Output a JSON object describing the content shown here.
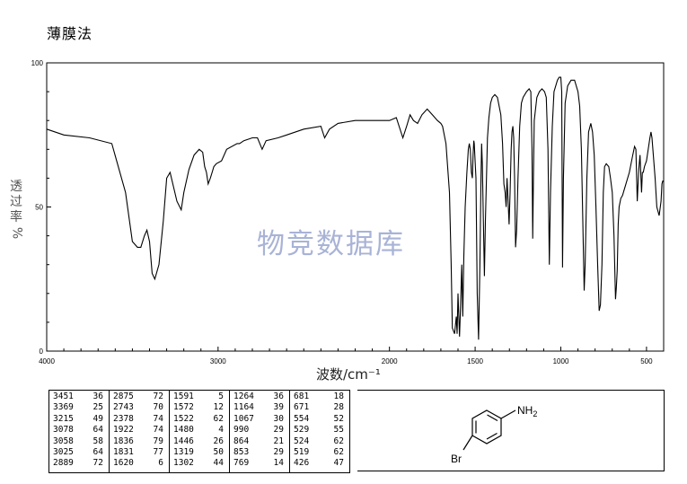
{
  "method": "薄膜法",
  "watermark": "物竞数据库",
  "chart_data": {
    "type": "line",
    "xlabel": "波数/cm⁻¹",
    "ylabel": "透过率%",
    "xlim": [
      4000,
      400
    ],
    "ylim": [
      0,
      100
    ],
    "x_ticks": [
      4000,
      3000,
      2000,
      1500,
      1000,
      500
    ],
    "y_ticks": [
      100,
      50,
      0
    ],
    "y_tick_labels": [
      "100",
      "50",
      "0"
    ],
    "grid": false,
    "series": [
      {
        "points": [
          [
            4000,
            77
          ],
          [
            3900,
            75
          ],
          [
            3750,
            74
          ],
          [
            3620,
            72
          ],
          [
            3540,
            55
          ],
          [
            3500,
            38
          ],
          [
            3470,
            36
          ],
          [
            3451,
            36
          ],
          [
            3430,
            40
          ],
          [
            3415,
            42
          ],
          [
            3400,
            38
          ],
          [
            3385,
            27
          ],
          [
            3369,
            25
          ],
          [
            3345,
            30
          ],
          [
            3320,
            45
          ],
          [
            3300,
            60
          ],
          [
            3280,
            62
          ],
          [
            3260,
            57
          ],
          [
            3240,
            52
          ],
          [
            3215,
            49
          ],
          [
            3200,
            55
          ],
          [
            3170,
            63
          ],
          [
            3140,
            68
          ],
          [
            3110,
            70
          ],
          [
            3090,
            69
          ],
          [
            3078,
            64
          ],
          [
            3068,
            62
          ],
          [
            3058,
            58
          ],
          [
            3045,
            60
          ],
          [
            3035,
            62
          ],
          [
            3025,
            64
          ],
          [
            3010,
            65
          ],
          [
            2980,
            66
          ],
          [
            2950,
            70
          ],
          [
            2889,
            72
          ],
          [
            2875,
            72
          ],
          [
            2850,
            73
          ],
          [
            2800,
            74
          ],
          [
            2770,
            74
          ],
          [
            2743,
            70
          ],
          [
            2720,
            73
          ],
          [
            2650,
            74
          ],
          [
            2600,
            75
          ],
          [
            2500,
            77
          ],
          [
            2400,
            78
          ],
          [
            2378,
            74
          ],
          [
            2350,
            77
          ],
          [
            2300,
            79
          ],
          [
            2200,
            80
          ],
          [
            2100,
            80
          ],
          [
            2000,
            80
          ],
          [
            1960,
            81
          ],
          [
            1922,
            74
          ],
          [
            1900,
            78
          ],
          [
            1880,
            82
          ],
          [
            1860,
            80
          ],
          [
            1836,
            79
          ],
          [
            1810,
            82
          ],
          [
            1780,
            84
          ],
          [
            1750,
            82
          ],
          [
            1720,
            80
          ],
          [
            1700,
            79
          ],
          [
            1690,
            78
          ],
          [
            1670,
            72
          ],
          [
            1650,
            55
          ],
          [
            1640,
            30
          ],
          [
            1633,
            8
          ],
          [
            1620,
            6
          ],
          [
            1610,
            12
          ],
          [
            1605,
            6
          ],
          [
            1600,
            20
          ],
          [
            1591,
            5
          ],
          [
            1585,
            16
          ],
          [
            1578,
            30
          ],
          [
            1572,
            12
          ],
          [
            1566,
            33
          ],
          [
            1558,
            50
          ],
          [
            1548,
            62
          ],
          [
            1540,
            70
          ],
          [
            1534,
            72
          ],
          [
            1528,
            70
          ],
          [
            1522,
            62
          ],
          [
            1516,
            60
          ],
          [
            1512,
            68
          ],
          [
            1508,
            73
          ],
          [
            1505,
            72
          ],
          [
            1495,
            60
          ],
          [
            1488,
            20
          ],
          [
            1480,
            4
          ],
          [
            1472,
            30
          ],
          [
            1466,
            60
          ],
          [
            1462,
            72
          ],
          [
            1458,
            65
          ],
          [
            1452,
            46
          ],
          [
            1446,
            26
          ],
          [
            1440,
            45
          ],
          [
            1434,
            60
          ],
          [
            1428,
            74
          ],
          [
            1420,
            81
          ],
          [
            1410,
            86
          ],
          [
            1400,
            88
          ],
          [
            1385,
            89
          ],
          [
            1370,
            88
          ],
          [
            1350,
            82
          ],
          [
            1340,
            72
          ],
          [
            1332,
            58
          ],
          [
            1325,
            55
          ],
          [
            1319,
            50
          ],
          [
            1314,
            60
          ],
          [
            1309,
            54
          ],
          [
            1302,
            44
          ],
          [
            1296,
            55
          ],
          [
            1290,
            70
          ],
          [
            1285,
            76
          ],
          [
            1280,
            78
          ],
          [
            1275,
            74
          ],
          [
            1270,
            60
          ],
          [
            1264,
            36
          ],
          [
            1258,
            42
          ],
          [
            1250,
            60
          ],
          [
            1240,
            78
          ],
          [
            1230,
            86
          ],
          [
            1220,
            88
          ],
          [
            1200,
            90
          ],
          [
            1185,
            91
          ],
          [
            1175,
            90
          ],
          [
            1168,
            70
          ],
          [
            1164,
            39
          ],
          [
            1160,
            60
          ],
          [
            1155,
            80
          ],
          [
            1140,
            88
          ],
          [
            1125,
            90
          ],
          [
            1110,
            91
          ],
          [
            1095,
            90
          ],
          [
            1085,
            88
          ],
          [
            1075,
            70
          ],
          [
            1067,
            30
          ],
          [
            1060,
            55
          ],
          [
            1050,
            78
          ],
          [
            1040,
            90
          ],
          [
            1020,
            94
          ],
          [
            1010,
            95
          ],
          [
            1000,
            95
          ],
          [
            995,
            90
          ],
          [
            990,
            29
          ],
          [
            985,
            60
          ],
          [
            975,
            86
          ],
          [
            960,
            92
          ],
          [
            940,
            94
          ],
          [
            920,
            94
          ],
          [
            900,
            90
          ],
          [
            890,
            85
          ],
          [
            880,
            70
          ],
          [
            870,
            40
          ],
          [
            864,
            21
          ],
          [
            858,
            30
          ],
          [
            848,
            60
          ],
          [
            838,
            76
          ],
          [
            825,
            79
          ],
          [
            815,
            76
          ],
          [
            805,
            68
          ],
          [
            795,
            50
          ],
          [
            785,
            30
          ],
          [
            776,
            14
          ],
          [
            769,
            16
          ],
          [
            760,
            30
          ],
          [
            752,
            55
          ],
          [
            745,
            64
          ],
          [
            735,
            65
          ],
          [
            720,
            64
          ],
          [
            710,
            60
          ],
          [
            700,
            55
          ],
          [
            690,
            40
          ],
          [
            681,
            18
          ],
          [
            676,
            22
          ],
          [
            671,
            28
          ],
          [
            665,
            44
          ],
          [
            660,
            50
          ],
          [
            650,
            53
          ],
          [
            640,
            54
          ],
          [
            630,
            56
          ],
          [
            620,
            58
          ],
          [
            610,
            60
          ],
          [
            600,
            62
          ],
          [
            590,
            65
          ],
          [
            580,
            68
          ],
          [
            570,
            71
          ],
          [
            562,
            70
          ],
          [
            554,
            52
          ],
          [
            545,
            63
          ],
          [
            538,
            68
          ],
          [
            529,
            55
          ],
          [
            524,
            62
          ],
          [
            519,
            62
          ],
          [
            512,
            64
          ],
          [
            500,
            66
          ],
          [
            490,
            70
          ],
          [
            480,
            74
          ],
          [
            474,
            76
          ],
          [
            468,
            74
          ],
          [
            460,
            68
          ],
          [
            450,
            60
          ],
          [
            440,
            50
          ],
          [
            426,
            47
          ],
          [
            415,
            52
          ],
          [
            410,
            58
          ],
          [
            405,
            59
          ],
          [
            400,
            59
          ]
        ]
      }
    ]
  },
  "peak_table": [
    [
      [
        "3451",
        "36"
      ],
      [
        "3369",
        "25"
      ],
      [
        "3215",
        "49"
      ],
      [
        "3078",
        "64"
      ],
      [
        "3058",
        "58"
      ],
      [
        "3025",
        "64"
      ],
      [
        "2889",
        "72"
      ]
    ],
    [
      [
        "2875",
        "72"
      ],
      [
        "2743",
        "70"
      ],
      [
        "2378",
        "74"
      ],
      [
        "1922",
        "74"
      ],
      [
        "1836",
        "79"
      ],
      [
        "1831",
        "77"
      ],
      [
        "1620",
        "6"
      ]
    ],
    [
      [
        "1591",
        "5"
      ],
      [
        "1572",
        "12"
      ],
      [
        "1522",
        "62"
      ],
      [
        "1480",
        "4"
      ],
      [
        "1446",
        "26"
      ],
      [
        "1319",
        "50"
      ],
      [
        "1302",
        "44"
      ]
    ],
    [
      [
        "1264",
        "36"
      ],
      [
        "1164",
        "39"
      ],
      [
        "1067",
        "30"
      ],
      [
        "990",
        "29"
      ],
      [
        "864",
        "21"
      ],
      [
        "853",
        "29"
      ],
      [
        "769",
        "14"
      ]
    ],
    [
      [
        "681",
        "18"
      ],
      [
        "671",
        "28"
      ],
      [
        "554",
        "52"
      ],
      [
        "529",
        "55"
      ],
      [
        "524",
        "62"
      ],
      [
        "519",
        "62"
      ],
      [
        "426",
        "47"
      ]
    ]
  ],
  "structure": {
    "amine_label": "NH",
    "amine_subscript": "2",
    "bromo_label": "Br"
  }
}
